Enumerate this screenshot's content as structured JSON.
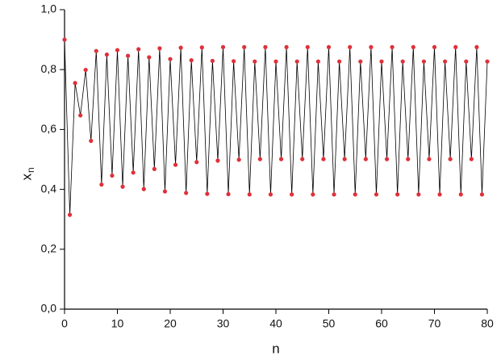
{
  "chart_data": {
    "type": "line",
    "xlabel": "n",
    "ylabel": {
      "text": "x",
      "subscript": "n"
    },
    "x": [
      0,
      1,
      2,
      3,
      4,
      5,
      6,
      7,
      8,
      9,
      10,
      11,
      12,
      13,
      14,
      15,
      16,
      17,
      18,
      19,
      20,
      21,
      22,
      23,
      24,
      25,
      26,
      27,
      28,
      29,
      30,
      31,
      32,
      33,
      34,
      35,
      36,
      37,
      38,
      39,
      40,
      41,
      42,
      43,
      44,
      45,
      46,
      47,
      48,
      49,
      50,
      51,
      52,
      53,
      54,
      55,
      56,
      57,
      58,
      59,
      60,
      61,
      62,
      63,
      64,
      65,
      66,
      67,
      68,
      69,
      70,
      71,
      72,
      73,
      74,
      75,
      76,
      77,
      78,
      79,
      80
    ],
    "series": [
      {
        "line_color": "#000000",
        "marker_color": "#e0303a",
        "values": [
          0.9,
          0.315,
          0.755,
          0.647,
          0.799,
          0.562,
          0.862,
          0.416,
          0.85,
          0.446,
          0.865,
          0.409,
          0.846,
          0.456,
          0.868,
          0.401,
          0.841,
          0.468,
          0.871,
          0.393,
          0.835,
          0.482,
          0.873,
          0.388,
          0.831,
          0.491,
          0.874,
          0.385,
          0.829,
          0.496,
          0.875,
          0.384,
          0.828,
          0.499,
          0.875,
          0.383,
          0.827,
          0.501,
          0.875,
          0.383,
          0.827,
          0.501,
          0.875,
          0.383,
          0.827,
          0.501,
          0.875,
          0.383,
          0.827,
          0.501,
          0.875,
          0.383,
          0.827,
          0.501,
          0.875,
          0.383,
          0.827,
          0.501,
          0.875,
          0.383,
          0.827,
          0.501,
          0.875,
          0.383,
          0.827,
          0.501,
          0.875,
          0.383,
          0.827,
          0.501,
          0.875,
          0.383,
          0.827,
          0.501,
          0.875,
          0.383,
          0.827,
          0.501,
          0.875,
          0.383,
          0.827
        ]
      }
    ],
    "xlim": [
      0,
      80
    ],
    "xticks": [
      0,
      10,
      20,
      30,
      40,
      50,
      60,
      70,
      80
    ],
    "ylim": [
      0,
      1
    ],
    "yticks": [
      {
        "value": 0,
        "label": "0,0"
      },
      {
        "value": 0.2,
        "label": "0,2"
      },
      {
        "value": 0.4,
        "label": "0,4"
      },
      {
        "value": 0.6,
        "label": "0,6"
      },
      {
        "value": 0.8,
        "label": "0,8"
      },
      {
        "value": 1,
        "label": "1,0"
      }
    ],
    "grid": false
  }
}
